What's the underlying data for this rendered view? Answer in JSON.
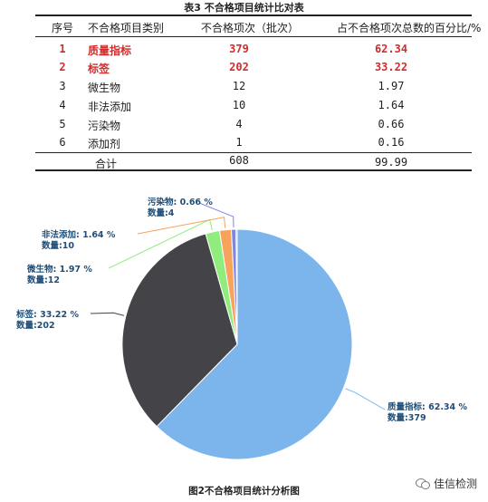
{
  "table": {
    "title": "表3  不合格项目统计比对表",
    "headers": [
      "序号",
      "不合格项目类别",
      "不合格项次（批次）",
      "占不合格项次总数的百分比/%"
    ],
    "rows": [
      {
        "no": "1",
        "category": "质量指标",
        "count": "379",
        "percent": "62.34",
        "highlight": true
      },
      {
        "no": "2",
        "category": "标签",
        "count": "202",
        "percent": "33.22",
        "highlight": true
      },
      {
        "no": "3",
        "category": "微生物",
        "count": "12",
        "percent": "1.97",
        "highlight": false
      },
      {
        "no": "4",
        "category": "非法添加",
        "count": "10",
        "percent": "1.64",
        "highlight": false
      },
      {
        "no": "5",
        "category": "污染物",
        "count": "4",
        "percent": "0.66",
        "highlight": false
      },
      {
        "no": "6",
        "category": "添加剂",
        "count": "1",
        "percent": "0.16",
        "highlight": false
      }
    ],
    "total": {
      "label": "合计",
      "count": "608",
      "percent": "99.99"
    }
  },
  "chart_data": {
    "type": "pie",
    "title": "",
    "caption": "图2不合格项目统计分析图",
    "slices": [
      {
        "name": "质量指标",
        "percent": 62.34,
        "count": 379,
        "color": "#7cb5ec",
        "label1": "质量指标: 62.34 %",
        "label2": "数量:379"
      },
      {
        "name": "标签",
        "percent": 33.22,
        "count": 202,
        "color": "#434348",
        "label1": "标签: 33.22 %",
        "label2": "数量:202"
      },
      {
        "name": "微生物",
        "percent": 1.97,
        "count": 12,
        "color": "#90ed7d",
        "label1": "微生物: 1.97 %",
        "label2": "数量:12"
      },
      {
        "name": "非法添加",
        "percent": 1.64,
        "count": 10,
        "color": "#f7a35c",
        "label1": "非法添加: 1.64 %",
        "label2": "数量:10"
      },
      {
        "name": "污染物",
        "percent": 0.66,
        "count": 4,
        "color": "#8085e9",
        "label1": "污染物: 0.66 %",
        "label2": "数量:4"
      },
      {
        "name": "添加剂",
        "percent": 0.16,
        "count": 1,
        "color": "#f15c80",
        "label1": "",
        "label2": ""
      }
    ]
  },
  "watermark": {
    "text": "佳信检测",
    "icon": "wechat-icon"
  }
}
